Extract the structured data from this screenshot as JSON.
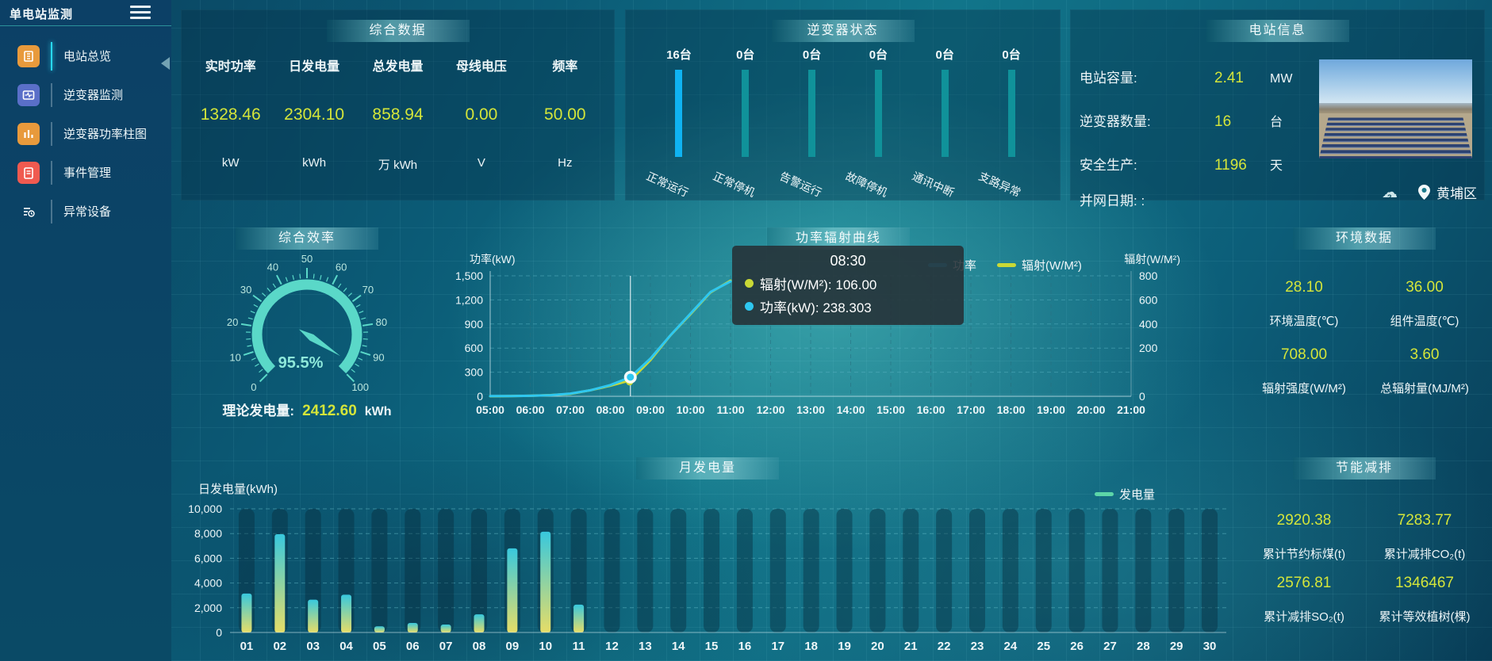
{
  "app": {
    "title": "单电站监测"
  },
  "sidebar": {
    "items": [
      {
        "key": "station-overview",
        "label": "电站总览",
        "icon": "overview-icon",
        "color": "#e89a3c",
        "active": true
      },
      {
        "key": "inverter-monitor",
        "label": "逆变器监测",
        "icon": "inverter-monitor-icon",
        "color": "#5a6fc8",
        "active": false
      },
      {
        "key": "inverter-power-bars",
        "label": "逆变器功率柱图",
        "icon": "inverter-power-bars-icon",
        "color": "#e89a3c",
        "active": false
      },
      {
        "key": "event-management",
        "label": "事件管理",
        "icon": "event-management-icon",
        "color": "#f05a50",
        "active": false
      },
      {
        "key": "abnormal-devices",
        "label": "异常设备",
        "icon": "abnormal-device-icon",
        "color": "#a express06ad8",
        "active": false
      }
    ]
  },
  "panels": {
    "summary": {
      "title": "综合数据",
      "items": [
        {
          "label": "实时功率",
          "value": "1328.46",
          "unit": "kW"
        },
        {
          "label": "日发电量",
          "value": "2304.10",
          "unit": "kWh"
        },
        {
          "label": "总发电量",
          "value": "858.94",
          "unit": "万 kWh"
        },
        {
          "label": "母线电压",
          "value": "0.00",
          "unit": "V"
        },
        {
          "label": "频率",
          "value": "50.00",
          "unit": "Hz"
        }
      ]
    },
    "inverter_status": {
      "title": "逆变器状态",
      "items": [
        {
          "count": "16台",
          "label": "正常运行",
          "highlight": true
        },
        {
          "count": "0台",
          "label": "正常停机",
          "highlight": false
        },
        {
          "count": "0台",
          "label": "告警运行",
          "highlight": false
        },
        {
          "count": "0台",
          "label": "故障停机",
          "highlight": false
        },
        {
          "count": "0台",
          "label": "通讯中断",
          "highlight": false
        },
        {
          "count": "0台",
          "label": "支路异常",
          "highlight": false
        }
      ]
    },
    "station_info": {
      "title": "电站信息",
      "rows": [
        {
          "label": "电站容量:",
          "value": "2.41",
          "unit": "MW"
        },
        {
          "label": "逆变器数量:",
          "value": "16",
          "unit": "台"
        },
        {
          "label": "安全生产:",
          "value": "1196",
          "unit": "天"
        },
        {
          "label": "并网日期: :",
          "value": "",
          "unit": ""
        }
      ],
      "location": "黄埔区"
    },
    "efficiency": {
      "title": "综合效率",
      "gauge_label": "95.5%",
      "footer_label": "理论发电量:",
      "footer_value": "2412.60",
      "footer_unit": "kWh"
    },
    "power_curve": {
      "title": "功率辐射曲线"
    },
    "environment": {
      "title": "环境数据",
      "items": [
        {
          "value": "28.10",
          "label": "环境温度(℃)"
        },
        {
          "value": "36.00",
          "label": "组件温度(℃)"
        },
        {
          "value": "708.00",
          "label": "辐射强度(W/M²)"
        },
        {
          "value": "3.60",
          "label": "总辐射量(MJ/M²)"
        }
      ]
    },
    "monthly": {
      "title": "月发电量"
    },
    "savings": {
      "title": "节能减排",
      "items": [
        {
          "value": "2920.38",
          "label": "累计节约标煤(t)"
        },
        {
          "value": "7283.77",
          "label": "累计减排CO₂(t)"
        },
        {
          "value": "2576.81",
          "label": "累计减排SO₂(t)"
        },
        {
          "value": "1346467",
          "label": "累计等效植树(棵)"
        }
      ]
    }
  },
  "colors": {
    "value_yellow": "#d4e53a",
    "power_line": "#2ec7f0",
    "radiation_line": "#c9d936",
    "gauge": "#5ad8c8",
    "active_bar": "#0fb3f2",
    "idle_bar": "#10929a",
    "legend_green": "#5cd6a8",
    "bar_gradient_top": "#38c8dd",
    "bar_gradient_bottom": "#e6dd67"
  },
  "chart_data": [
    {
      "id": "inverter_status",
      "type": "bar",
      "title": "逆变器状态",
      "categories": [
        "正常运行",
        "正常停机",
        "告警运行",
        "故障停机",
        "通讯中断",
        "支路异常"
      ],
      "values": [
        16,
        0,
        0,
        0,
        0,
        0
      ],
      "unit": "台",
      "note": "status columns drawn full height; first status highlighted cyan"
    },
    {
      "id": "efficiency_gauge",
      "type": "gauge",
      "title": "综合效率",
      "value": 95.5,
      "display": "95.5%",
      "min": 0,
      "max": 100,
      "tick_interval": 10
    },
    {
      "id": "power_radiation",
      "type": "line",
      "title": "功率辐射曲线",
      "x_hours": [
        5,
        5.5,
        6,
        6.5,
        7,
        7.5,
        8,
        8.5,
        9,
        9.5,
        10,
        10.5,
        11
      ],
      "x_labels": [
        "05:00",
        "06:00",
        "07:00",
        "08:00",
        "09:00",
        "10:00",
        "11:00",
        "12:00",
        "13:00",
        "14:00",
        "15:00",
        "16:00",
        "17:00",
        "18:00",
        "19:00",
        "20:00",
        "21:00"
      ],
      "series": [
        {
          "name": "功率",
          "axis": "left",
          "values": [
            2,
            3,
            6,
            14,
            34,
            75,
            140,
            238.3,
            470,
            760,
            1030,
            1300,
            1430
          ]
        },
        {
          "name": "辐射(W/M²)",
          "axis": "right",
          "values": [
            0,
            1,
            3,
            8,
            16,
            40,
            70,
            106,
            240,
            405,
            545,
            690,
            768
          ]
        }
      ],
      "y_left": {
        "label": "功率(kW)",
        "ticks": [
          "0",
          "300",
          "600",
          "900",
          "1,200",
          "1,500"
        ],
        "max": 1500
      },
      "y_right": {
        "label": "辐射(W/M²)",
        "ticks": [
          "0",
          "200",
          "400",
          "600",
          "800"
        ],
        "max": 800
      },
      "legend": [
        "功率",
        "辐射(W/M²)"
      ],
      "legend_pos": "top-center-right",
      "grid": "dashed",
      "tooltip": {
        "time": "08:30",
        "x_hour": 8.5,
        "rows": [
          {
            "series": "辐射(W/M²)",
            "value": "106.00",
            "text": "辐射(W/M²): 106.00"
          },
          {
            "series": "功率(kW)",
            "value": "238.303",
            "text": "功率(kW): 238.303"
          }
        ]
      }
    },
    {
      "id": "monthly_energy",
      "type": "bar",
      "title": "月发电量",
      "ylabel": "日发电量(kWh)",
      "legend": "发电量",
      "categories": [
        "01",
        "02",
        "03",
        "04",
        "05",
        "06",
        "07",
        "08",
        "09",
        "10",
        "11",
        "12",
        "13",
        "14",
        "15",
        "16",
        "17",
        "18",
        "19",
        "20",
        "21",
        "22",
        "23",
        "24",
        "25",
        "26",
        "27",
        "28",
        "29",
        "30"
      ],
      "values": [
        3150,
        7950,
        2650,
        3050,
        500,
        770,
        640,
        1470,
        6800,
        8150,
        2250,
        0,
        0,
        0,
        0,
        0,
        0,
        0,
        0,
        0,
        0,
        0,
        0,
        0,
        0,
        0,
        0,
        0,
        0,
        0
      ],
      "y_ticks": [
        "0",
        "2,000",
        "4,000",
        "6,000",
        "8,000",
        "10,000"
      ],
      "ylim": [
        0,
        10000
      ],
      "grid": "dashed"
    }
  ]
}
